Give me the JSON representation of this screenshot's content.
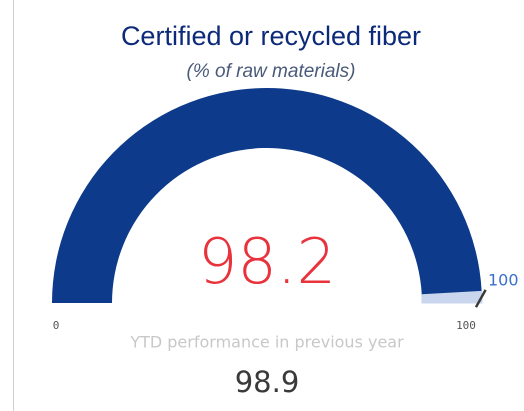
{
  "chart_data": {
    "type": "gauge",
    "title": "Certified or recycled fiber",
    "subtitle": "(% of raw materials)",
    "value": 98.2,
    "ylim": [
      0,
      100
    ],
    "target": 100,
    "comparison_label": "YTD performance in previous year",
    "comparison_value": 98.9,
    "color": "#0d3a8a",
    "remainder_color": "#c9d6ee",
    "value_color": "#e8323c",
    "target_color": "#3a3a3a"
  }
}
